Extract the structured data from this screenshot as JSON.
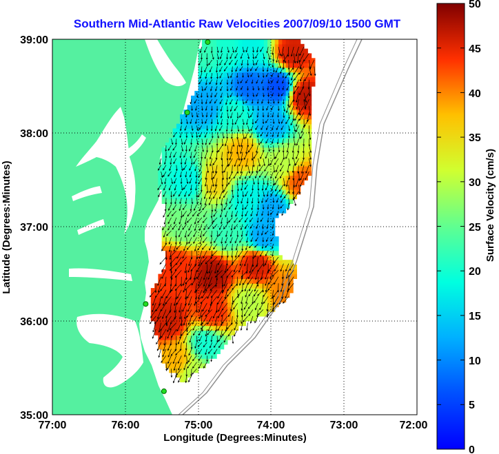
{
  "chart_data": {
    "type": "heatmap",
    "title": "Southern Mid-Atlantic Raw Velocities 2007/09/10 1500 GMT",
    "xlabel": "Longitude (Degrees:Minutes)",
    "ylabel": "Latitude (Degrees:Minutes)",
    "colorbar_label": "Surface Velocity (cm/s)",
    "x_ticks": [
      "77:00",
      "76:00",
      "75:00",
      "74:00",
      "73:00",
      "72:00"
    ],
    "y_ticks": [
      "39:00",
      "38:00",
      "37:00",
      "36:00",
      "35:00"
    ],
    "colorbar_ticks": [
      "50",
      "45",
      "40",
      "35",
      "30",
      "25",
      "20",
      "15",
      "10",
      "5",
      "0"
    ],
    "xlim": [
      -77,
      -72
    ],
    "ylim": [
      35,
      39
    ],
    "clim": [
      0,
      50
    ],
    "units": "cm/s",
    "grid": true,
    "colormap": "jet",
    "stations": [
      {
        "lon": -74.87,
        "lat": 38.97
      },
      {
        "lon": -75.15,
        "lat": 38.22
      },
      {
        "lon": -75.72,
        "lat": 36.18
      },
      {
        "lon": -75.47,
        "lat": 35.25
      }
    ],
    "velocity_field": [
      {
        "lon": -74.9,
        "lat": 38.9,
        "speed": 22
      },
      {
        "lon": -74.6,
        "lat": 38.9,
        "speed": 20
      },
      {
        "lon": -74.3,
        "lat": 38.9,
        "speed": 18
      },
      {
        "lon": -73.7,
        "lat": 38.85,
        "speed": 46
      },
      {
        "lon": -74.3,
        "lat": 38.5,
        "speed": 8
      },
      {
        "lon": -73.9,
        "lat": 38.5,
        "speed": 6
      },
      {
        "lon": -73.55,
        "lat": 38.4,
        "speed": 47
      },
      {
        "lon": -74.9,
        "lat": 38.3,
        "speed": 12
      },
      {
        "lon": -74.5,
        "lat": 38.2,
        "speed": 20
      },
      {
        "lon": -74.0,
        "lat": 38.1,
        "speed": 12
      },
      {
        "lon": -74.4,
        "lat": 37.8,
        "speed": 38
      },
      {
        "lon": -73.8,
        "lat": 37.7,
        "speed": 30
      },
      {
        "lon": -73.6,
        "lat": 37.5,
        "speed": 42
      },
      {
        "lon": -75.1,
        "lat": 37.5,
        "speed": 18
      },
      {
        "lon": -74.8,
        "lat": 37.5,
        "speed": 36
      },
      {
        "lon": -74.3,
        "lat": 37.3,
        "speed": 18
      },
      {
        "lon": -74.0,
        "lat": 37.2,
        "speed": 12
      },
      {
        "lon": -75.2,
        "lat": 37.0,
        "speed": 26
      },
      {
        "lon": -74.6,
        "lat": 36.95,
        "speed": 22
      },
      {
        "lon": -74.1,
        "lat": 36.9,
        "speed": 12
      },
      {
        "lon": -75.3,
        "lat": 36.6,
        "speed": 44
      },
      {
        "lon": -74.8,
        "lat": 36.5,
        "speed": 48
      },
      {
        "lon": -74.2,
        "lat": 36.6,
        "speed": 46
      },
      {
        "lon": -73.8,
        "lat": 36.3,
        "speed": 40
      },
      {
        "lon": -75.4,
        "lat": 36.0,
        "speed": 46
      },
      {
        "lon": -74.8,
        "lat": 36.1,
        "speed": 44
      },
      {
        "lon": -74.3,
        "lat": 36.2,
        "speed": 30
      },
      {
        "lon": -75.3,
        "lat": 35.6,
        "speed": 38
      },
      {
        "lon": -74.9,
        "lat": 35.75,
        "speed": 20
      },
      {
        "lon": -75.05,
        "lat": 35.45,
        "speed": 30
      }
    ]
  }
}
